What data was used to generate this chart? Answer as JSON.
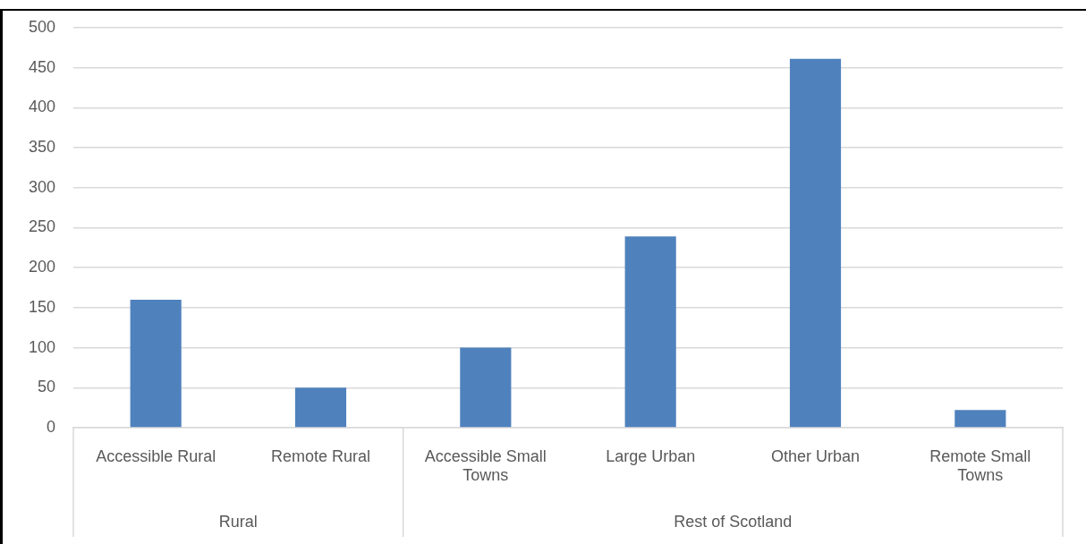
{
  "chart_data": {
    "type": "bar",
    "categories": [
      "Accessible Rural",
      "Remote Rural",
      "Accessible Small Towns",
      "Large Urban",
      "Other Urban",
      "Remote Small Towns"
    ],
    "values": [
      160,
      50,
      100,
      239,
      461,
      22
    ],
    "color": "#4f81bd",
    "ylim": [
      0,
      500
    ],
    "yticks": [
      0,
      50,
      100,
      150,
      200,
      250,
      300,
      350,
      400,
      450,
      500
    ],
    "grid": "y",
    "legend": false,
    "annotations": [
      "Rural",
      "Rest of Scotland"
    ]
  }
}
